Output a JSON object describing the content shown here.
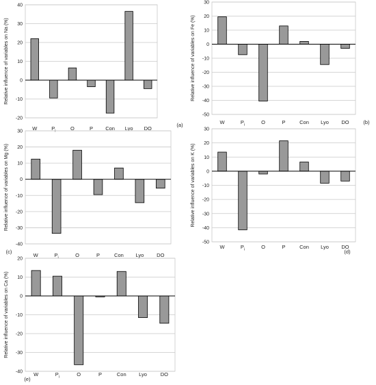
{
  "chart_data": [
    {
      "type": "bar",
      "panel_label": "(a)",
      "ylabel": "Relative influence of variables on Na (%)",
      "categories": [
        "W",
        "Pi",
        "O",
        "P",
        "Con",
        "Lyo",
        "DO"
      ],
      "values": [
        22,
        -9.5,
        6.5,
        -3.5,
        -17.5,
        36.5,
        -4.5
      ],
      "ylim": [
        -20,
        40
      ],
      "yticks": [
        -20,
        -10,
        0,
        10,
        20,
        30,
        40
      ],
      "grid": true,
      "bar_color": "#999999"
    },
    {
      "type": "bar",
      "panel_label": "(b)",
      "ylabel": "Relative influence of variables on Fe (%)",
      "categories": [
        "W",
        "Pi",
        "O",
        "P",
        "Con",
        "Lyo",
        "DO"
      ],
      "values": [
        19.5,
        -7.5,
        -40.5,
        13,
        2,
        -14.5,
        -3
      ],
      "ylim": [
        -50,
        30
      ],
      "yticks": [
        -50,
        -40,
        -30,
        -20,
        -10,
        0,
        10,
        20,
        30
      ],
      "grid": true,
      "bar_color": "#999999"
    },
    {
      "type": "bar",
      "panel_label": "(c)",
      "ylabel": "Relative influence of variables on Mg (%)",
      "categories": [
        "W",
        "Pi",
        "O",
        "P",
        "Con",
        "Lyo",
        "DO"
      ],
      "values": [
        12.5,
        -33.5,
        18,
        -9.5,
        7,
        -14.5,
        -5.5
      ],
      "ylim": [
        -40,
        30
      ],
      "yticks": [
        -40,
        -30,
        -20,
        -10,
        0,
        10,
        20,
        30
      ],
      "grid": true,
      "bar_color": "#999999"
    },
    {
      "type": "bar",
      "panel_label": "(d)",
      "ylabel": "Relative influence of variables on K (%)",
      "categories": [
        "W",
        "Pi",
        "O",
        "P",
        "Con",
        "Lyo",
        "DO"
      ],
      "values": [
        13.5,
        -41.5,
        -2,
        21.5,
        6.5,
        -8.5,
        -7
      ],
      "ylim": [
        -50,
        30
      ],
      "yticks": [
        -50,
        -40,
        -30,
        -20,
        -10,
        0,
        10,
        20,
        30
      ],
      "grid": true,
      "bar_color": "#999999"
    },
    {
      "type": "bar",
      "panel_label": "(e)",
      "ylabel": "Relative influence of variables on Ca (%)",
      "categories": [
        "W",
        "Pi",
        "O",
        "P",
        "Con",
        "Lyo",
        "DO"
      ],
      "values": [
        13.5,
        10.5,
        -36.5,
        -0.5,
        13,
        -11.5,
        -14.5
      ],
      "ylim": [
        -40,
        20
      ],
      "yticks": [
        -40,
        -30,
        -20,
        -10,
        0,
        10,
        20
      ],
      "grid": true,
      "bar_color": "#999999"
    }
  ]
}
